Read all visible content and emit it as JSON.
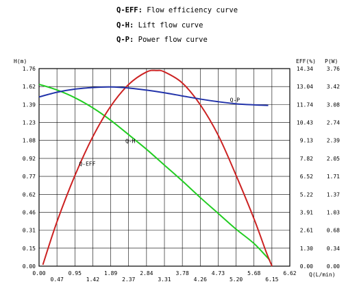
{
  "legend": [
    {
      "key": "Q-EFF:",
      "text": "Flow efficiency curve"
    },
    {
      "key": "Q-H:",
      "text": "Lift flow curve"
    },
    {
      "key": "Q-P:",
      "text": "Power flow curve"
    }
  ],
  "chart_data": {
    "type": "line",
    "title": "",
    "xlabel": "Q(L/min)",
    "ylabel_left": "H(m)",
    "ylabel_right_eff": "EFF(%)",
    "ylabel_right_power": "P(W)",
    "xlim": [
      0,
      6.62
    ],
    "ylim_left": [
      0,
      1.76
    ],
    "ylim_eff": [
      0,
      14.34
    ],
    "ylim_power": [
      0,
      3.76
    ],
    "grid": true,
    "x_ticks_upper": [
      "0.00",
      "0.95",
      "1.89",
      "2.84",
      "3.78",
      "4.73",
      "5.68",
      "6.62"
    ],
    "x_ticks_lower": [
      "0.47",
      "1.42",
      "2.37",
      "3.31",
      "4.26",
      "5.20",
      "6.15"
    ],
    "y_ticks_left": [
      "0.00",
      "0.15",
      "0.31",
      "0.46",
      "0.62",
      "0.77",
      "0.92",
      "1.08",
      "1.23",
      "1.39",
      "1.62",
      "1.76"
    ],
    "y_ticks_eff": [
      "0.00",
      "1.30",
      "2.61",
      "3.91",
      "5.22",
      "6.52",
      "7.82",
      "9.13",
      "10.43",
      "11.74",
      "13.04",
      "14.34"
    ],
    "y_ticks_power": [
      "0.00",
      "0.34",
      "0.68",
      "1.03",
      "1.37",
      "1.71",
      "2.05",
      "2.39",
      "2.74",
      "3.08",
      "3.42",
      "3.76"
    ],
    "series": [
      {
        "name": "Q-H",
        "axis": "H(m)",
        "color": "#22cc22",
        "x": [
          0,
          0.47,
          0.95,
          1.42,
          1.89,
          2.37,
          2.84,
          3.31,
          3.78,
          4.26,
          4.73,
          5.2,
          5.68,
          6.1
        ],
        "y": [
          1.62,
          1.57,
          1.5,
          1.41,
          1.3,
          1.17,
          1.04,
          0.9,
          0.76,
          0.61,
          0.47,
          0.33,
          0.2,
          0.05
        ]
      },
      {
        "name": "Q-EFF",
        "axis": "EFF(%)",
        "color": "#cc2222",
        "x": [
          0.1,
          0.47,
          0.95,
          1.42,
          1.89,
          2.37,
          2.84,
          3.1,
          3.31,
          3.78,
          4.26,
          4.73,
          5.2,
          5.68,
          6.0,
          6.15
        ],
        "y": [
          0.1,
          3.2,
          6.6,
          9.4,
          11.6,
          13.2,
          14.1,
          14.2,
          14.1,
          13.3,
          11.7,
          9.5,
          6.6,
          3.4,
          1.0,
          0.0
        ]
      },
      {
        "name": "Q-P",
        "axis": "P(W)",
        "color": "#2233aa",
        "x": [
          0,
          0.47,
          0.95,
          1.42,
          1.89,
          2.37,
          2.84,
          3.31,
          3.78,
          4.26,
          4.73,
          5.2,
          5.68,
          6.05
        ],
        "y": [
          3.22,
          3.31,
          3.37,
          3.4,
          3.41,
          3.39,
          3.35,
          3.3,
          3.24,
          3.18,
          3.13,
          3.09,
          3.07,
          3.06
        ]
      }
    ]
  }
}
